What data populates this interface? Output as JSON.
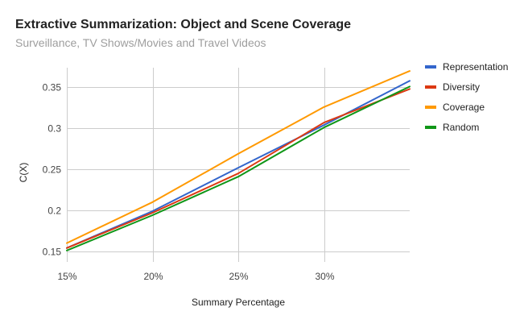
{
  "chart_data": {
    "type": "line",
    "title": "Extractive Summarization: Object and Scene Coverage",
    "subtitle": "Surveillance, TV Shows/Movies and Travel Videos",
    "xlabel": "Summary Percentage",
    "ylabel": "C(X)",
    "x": [
      15,
      20,
      25,
      30,
      35
    ],
    "x_ticks": [
      15,
      20,
      25,
      30
    ],
    "x_tick_labels": [
      "15%",
      "20%",
      "25%",
      "30%"
    ],
    "xlim": [
      15,
      35
    ],
    "y_ticks": [
      0.15,
      0.2,
      0.25,
      0.3,
      0.35
    ],
    "y_tick_labels": [
      "0.15",
      "0.2",
      "0.25",
      "0.3",
      "0.35"
    ],
    "ylim": [
      0.137,
      0.374
    ],
    "grid": true,
    "legend_position": "right",
    "series": [
      {
        "name": "Representation",
        "color": "#3366cc",
        "values": [
          0.154,
          0.199,
          0.252,
          0.304,
          0.358
        ]
      },
      {
        "name": "Diversity",
        "color": "#dc3912",
        "values": [
          0.154,
          0.197,
          0.245,
          0.307,
          0.348
        ]
      },
      {
        "name": "Coverage",
        "color": "#ff9900",
        "values": [
          0.16,
          0.21,
          0.269,
          0.326,
          0.37
        ]
      },
      {
        "name": "Random",
        "color": "#109618",
        "values": [
          0.151,
          0.194,
          0.241,
          0.301,
          0.351
        ]
      }
    ]
  }
}
